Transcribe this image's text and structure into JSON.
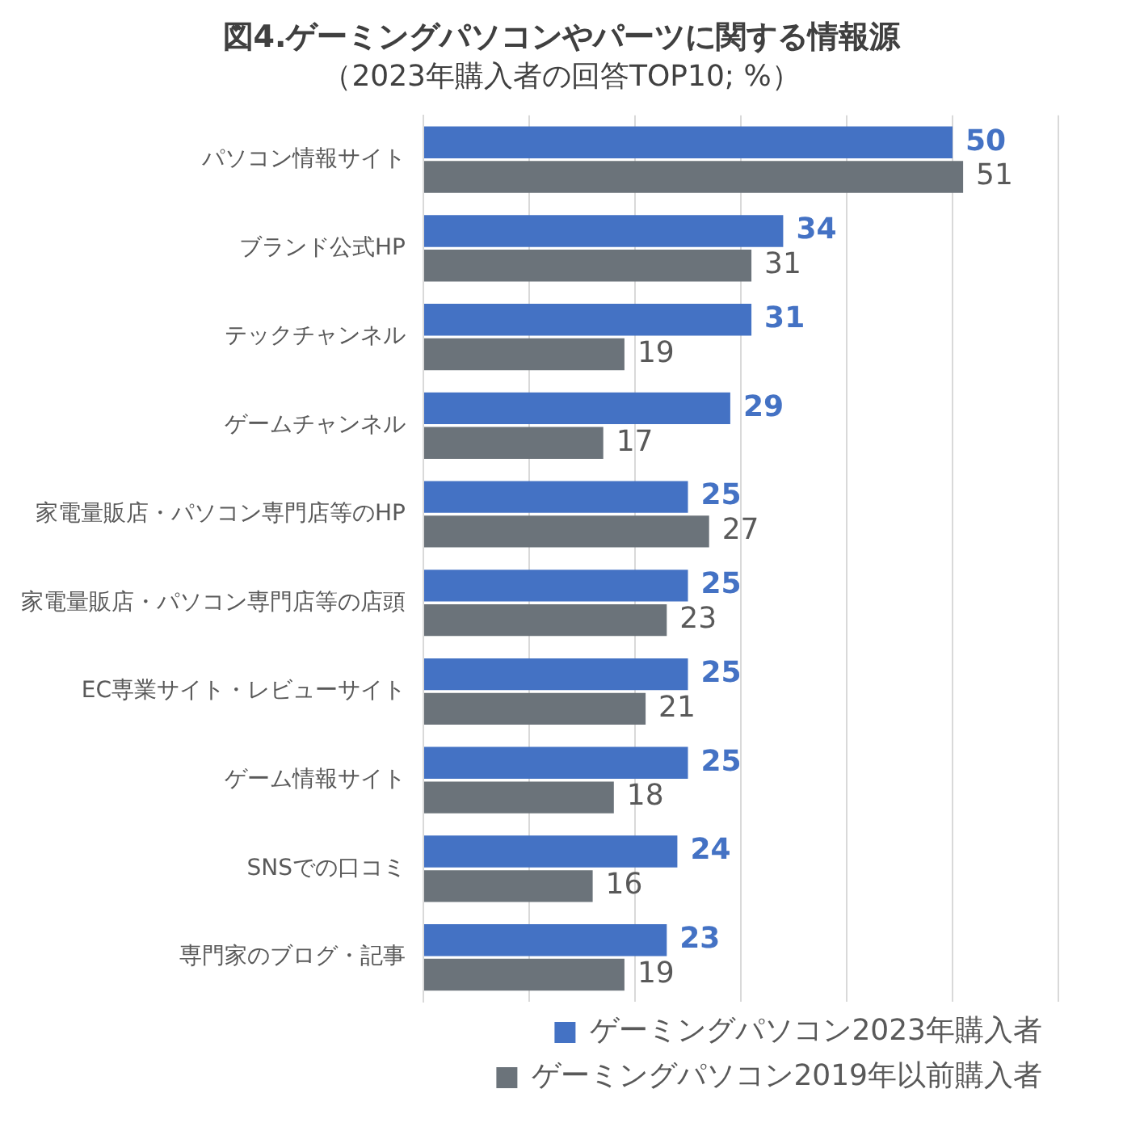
{
  "chart_data": {
    "type": "bar",
    "orientation": "horizontal",
    "title": "図4.ゲーミングパソコンやパーツに関する情報源",
    "subtitle": "（2023年購入者の回答TOP10; %）",
    "categories": [
      "パソコン情報サイト",
      "ブランド公式HP",
      "テックチャンネル",
      "ゲームチャンネル",
      "家電量販店・パソコン専門店等のHP",
      "家電量販店・パソコン専門店等の店頭",
      "EC専業サイト・レビューサイト",
      "ゲーム情報サイト",
      "SNSでの口コミ",
      "専門家のブログ・記事"
    ],
    "series": [
      {
        "name": "ゲーミングパソコン2023年購入者",
        "color": "#4472c4",
        "values": [
          50,
          34,
          31,
          29,
          25,
          25,
          25,
          25,
          24,
          23
        ]
      },
      {
        "name": "ゲーミングパソコン2019年以前購入者",
        "color": "#6b737a",
        "values": [
          51,
          31,
          19,
          17,
          27,
          23,
          21,
          18,
          16,
          19
        ]
      }
    ],
    "xlim": [
      0,
      60
    ],
    "xticks": [
      {
        "value": 0,
        "label": null
      },
      {
        "value": 10,
        "label": null
      },
      {
        "value": 20,
        "label": null
      },
      {
        "value": 30,
        "label": null
      },
      {
        "value": 40,
        "label": null
      },
      {
        "value": 50,
        "label": null
      },
      {
        "value": 60,
        "label": null
      }
    ],
    "grid": "x",
    "tick_labels": "y",
    "legend": "bottom",
    "data_labels": true
  }
}
